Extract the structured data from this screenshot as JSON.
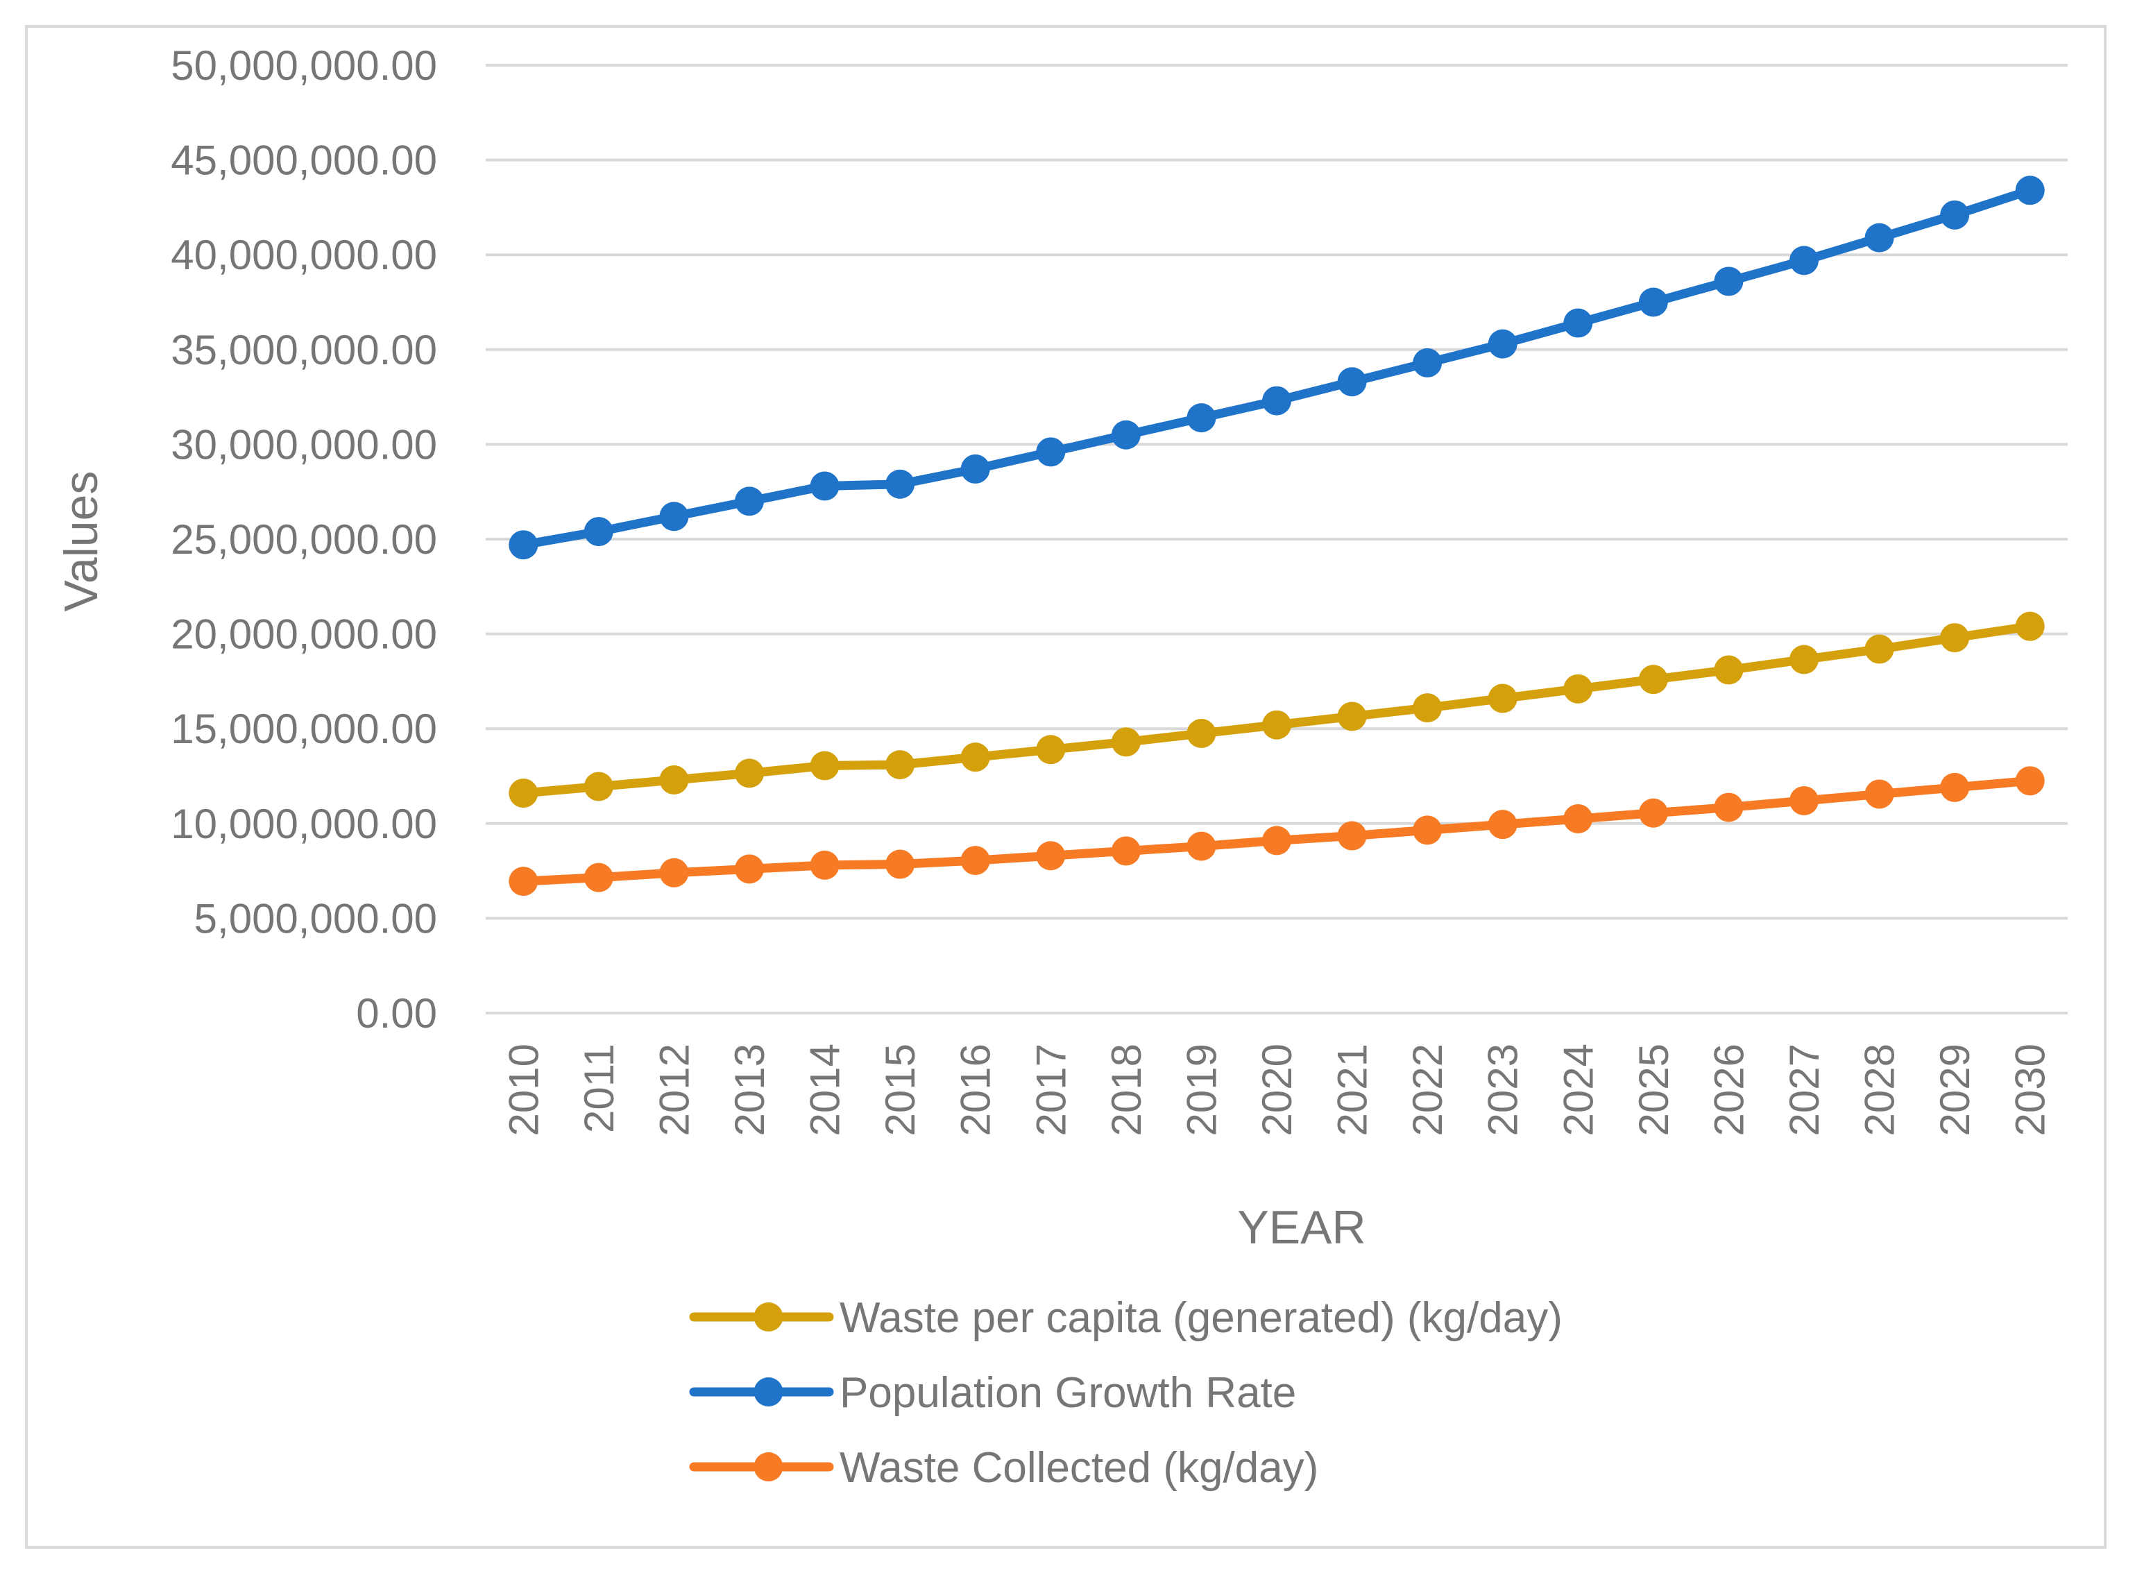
{
  "chart_data": {
    "type": "line",
    "title": "",
    "xlabel": "YEAR",
    "ylabel": "Values",
    "ylim": [
      0,
      50000000
    ],
    "ytick_step": 5000000,
    "yticks": [
      "0.00",
      "5,000,000.00",
      "10,000,000.00",
      "15,000,000.00",
      "20,000,000.00",
      "25,000,000.00",
      "30,000,000.00",
      "35,000,000.00",
      "40,000,000.00",
      "45,000,000.00",
      "50,000,000.00"
    ],
    "grid": "horizontal",
    "legend_position": "bottom",
    "categories": [
      "2010",
      "2011",
      "2012",
      "2013",
      "2014",
      "2015",
      "2016",
      "2017",
      "2018",
      "2019",
      "2020",
      "2021",
      "2022",
      "2023",
      "2024",
      "2025",
      "2026",
      "2027",
      "2028",
      "2029",
      "2030"
    ],
    "series": [
      {
        "name": "Waste per capita (generated) (kg/day)",
        "color": "#d4a00b",
        "values": [
          11600000,
          11950000,
          12300000,
          12650000,
          13050000,
          13100000,
          13500000,
          13900000,
          14300000,
          14750000,
          15200000,
          15650000,
          16100000,
          16600000,
          17100000,
          17600000,
          18100000,
          18650000,
          19200000,
          19800000,
          20400000
        ]
      },
      {
        "name": "Population Growth Rate",
        "color": "#1f73c9",
        "values": [
          24700000,
          25400000,
          26200000,
          27000000,
          27800000,
          27900000,
          28700000,
          29600000,
          30500000,
          31400000,
          32300000,
          33300000,
          34300000,
          35300000,
          36400000,
          37500000,
          38600000,
          39700000,
          40900000,
          42100000,
          43400000
        ]
      },
      {
        "name": "Waste Collected (kg/day)",
        "color": "#f77b24",
        "values": [
          6950000,
          7150000,
          7400000,
          7600000,
          7800000,
          7850000,
          8050000,
          8300000,
          8550000,
          8800000,
          9100000,
          9350000,
          9650000,
          9950000,
          10250000,
          10550000,
          10850000,
          11200000,
          11550000,
          11900000,
          12250000
        ]
      }
    ],
    "legend": [
      {
        "label": "Waste per capita (generated) (kg/day)",
        "color": "#d4a00b"
      },
      {
        "label": "Population Growth Rate",
        "color": "#1f73c9"
      },
      {
        "label": "Waste Collected (kg/day)",
        "color": "#f77b24"
      }
    ]
  }
}
